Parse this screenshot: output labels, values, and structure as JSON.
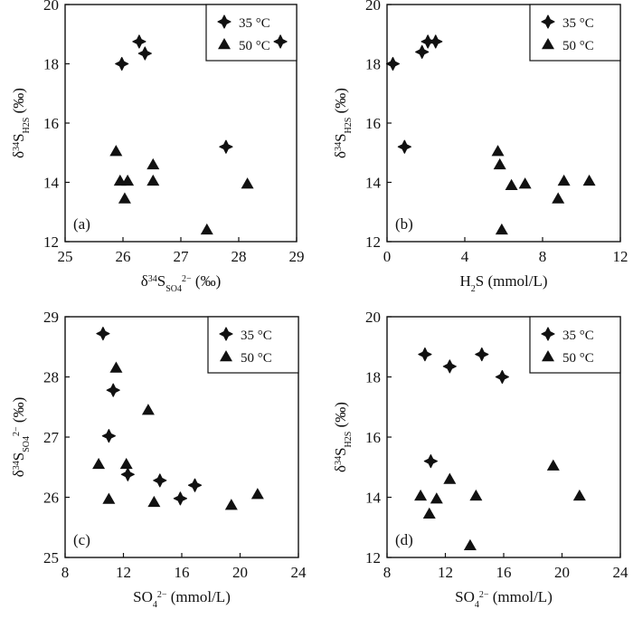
{
  "figure": {
    "legend_entries": [
      {
        "label": "35 °C",
        "marker": "diamond-cross"
      },
      {
        "label": "50 °C",
        "marker": "triangle"
      }
    ]
  },
  "chart_data": [
    {
      "type": "scatter",
      "panel": "(a)",
      "xlabel": "δ³⁴S_SO4²⁻ (‰)",
      "ylabel": "δ³⁴S_H2S (‰)",
      "xlim": [
        25,
        29
      ],
      "ylim": [
        12,
        20
      ],
      "xticks": [
        25,
        26,
        27,
        28,
        29
      ],
      "yticks": [
        12,
        14,
        16,
        18,
        20
      ],
      "legend_position": "top-right",
      "series": [
        {
          "name": "35 °C",
          "marker": "diamond-cross",
          "x": [
            25.98,
            26.28,
            26.38,
            27.78,
            28.72
          ],
          "y": [
            18.0,
            18.75,
            18.35,
            15.2,
            18.75
          ]
        },
        {
          "name": "50 °C",
          "marker": "triangle",
          "x": [
            25.88,
            25.95,
            26.08,
            26.03,
            26.52,
            26.52,
            27.45,
            28.15
          ],
          "y": [
            15.05,
            14.05,
            14.05,
            13.45,
            14.6,
            14.05,
            12.4,
            13.95
          ]
        }
      ]
    },
    {
      "type": "scatter",
      "panel": "(b)",
      "xlabel": "H₂S (mmol/L)",
      "ylabel": "δ³⁴S_H2S (‰)",
      "xlim": [
        0,
        12
      ],
      "ylim": [
        12,
        20
      ],
      "xticks": [
        0,
        4,
        8,
        12
      ],
      "yticks": [
        12,
        14,
        16,
        18,
        20
      ],
      "legend_position": "top-right",
      "series": [
        {
          "name": "35 °C",
          "marker": "diamond-cross",
          "x": [
            0.3,
            1.8,
            2.1,
            2.5,
            0.9
          ],
          "y": [
            18.0,
            18.4,
            18.75,
            18.75,
            15.2
          ]
        },
        {
          "name": "50 °C",
          "marker": "triangle",
          "x": [
            5.7,
            5.8,
            6.4,
            7.1,
            8.8,
            9.1,
            10.4,
            5.9
          ],
          "y": [
            15.05,
            14.6,
            13.9,
            13.95,
            13.45,
            14.05,
            14.05,
            12.4
          ]
        }
      ]
    },
    {
      "type": "scatter",
      "panel": "(c)",
      "xlabel": "SO₄²⁻ (mmol/L)",
      "ylabel": "δ³⁴S_SO4²⁻ (‰)",
      "xlim": [
        8,
        24
      ],
      "ylim": [
        25,
        29
      ],
      "xticks": [
        8,
        12,
        16,
        20,
        24
      ],
      "yticks": [
        25,
        26,
        27,
        28,
        29
      ],
      "legend_position": "top-right",
      "series": [
        {
          "name": "35 °C",
          "marker": "diamond-cross",
          "x": [
            10.6,
            11.0,
            11.3,
            12.3,
            14.5,
            15.9,
            16.9
          ],
          "y": [
            28.72,
            27.02,
            27.78,
            26.38,
            26.28,
            25.98,
            26.2
          ]
        },
        {
          "name": "50 °C",
          "marker": "triangle",
          "x": [
            10.3,
            11.0,
            11.5,
            12.2,
            13.7,
            14.1,
            19.4,
            21.2
          ],
          "y": [
            26.55,
            25.97,
            28.15,
            26.55,
            27.45,
            25.92,
            25.87,
            26.05
          ]
        }
      ]
    },
    {
      "type": "scatter",
      "panel": "(d)",
      "xlabel": "SO₄²⁻ (mmol/L)",
      "ylabel": "δ³⁴S_H2S (‰)",
      "xlim": [
        8,
        24
      ],
      "ylim": [
        12,
        20
      ],
      "xticks": [
        8,
        12,
        16,
        20,
        24
      ],
      "yticks": [
        12,
        14,
        16,
        18,
        20
      ],
      "legend_position": "top-right",
      "series": [
        {
          "name": "35 °C",
          "marker": "diamond-cross",
          "x": [
            10.6,
            12.3,
            14.5,
            15.9,
            11.0
          ],
          "y": [
            18.75,
            18.35,
            18.75,
            18.0,
            15.2
          ]
        },
        {
          "name": "50 °C",
          "marker": "triangle",
          "x": [
            10.3,
            10.9,
            11.4,
            12.3,
            14.1,
            13.7,
            19.4,
            21.2
          ],
          "y": [
            14.05,
            13.45,
            13.95,
            14.6,
            14.05,
            12.4,
            15.05,
            14.05
          ]
        }
      ]
    }
  ]
}
